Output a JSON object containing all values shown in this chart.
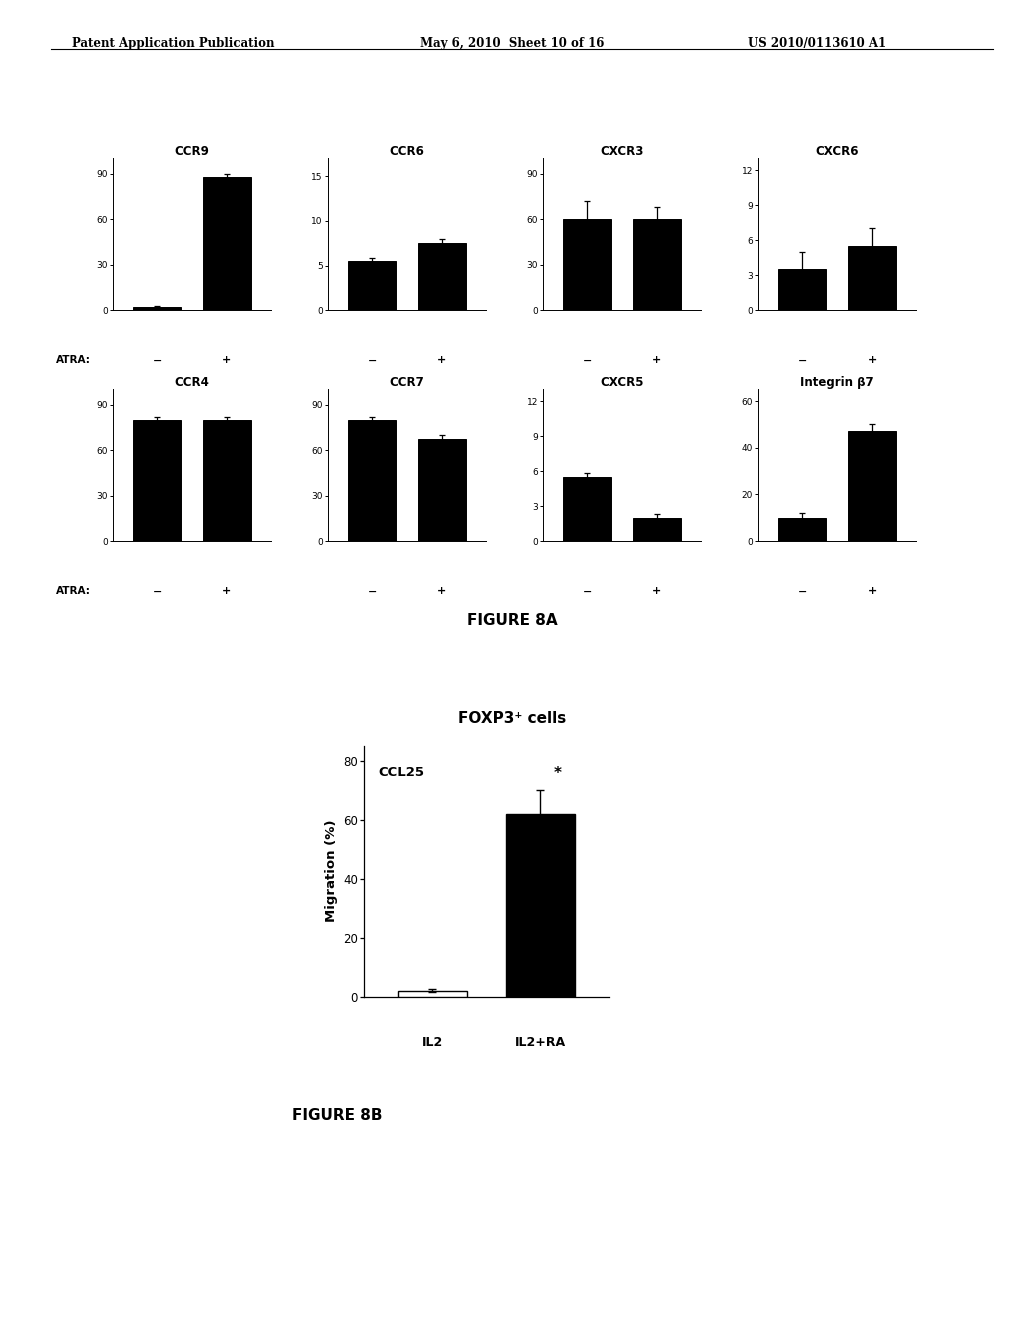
{
  "header_left": "Patent Application Publication",
  "header_mid": "May 6, 2010  Sheet 10 of 16",
  "header_right": "US 2010/0113610 A1",
  "figure8a_label": "FIGURE 8A",
  "figure8b_label": "FIGURE 8B",
  "row1": [
    {
      "title": "CCR9",
      "bars": [
        2,
        88
      ],
      "errors": [
        1,
        2
      ],
      "yticks": [
        0,
        30,
        60,
        90
      ],
      "ylim": [
        0,
        100
      ],
      "xtick_labels": [
        "−",
        "+"
      ]
    },
    {
      "title": "CCR6",
      "bars": [
        5.5,
        7.5
      ],
      "errors": [
        0.3,
        0.5
      ],
      "yticks": [
        0,
        5,
        10,
        15
      ],
      "ylim": [
        0,
        17
      ],
      "xtick_labels": [
        "−",
        "+"
      ]
    },
    {
      "title": "CXCR3",
      "bars": [
        60,
        60
      ],
      "errors": [
        12,
        8
      ],
      "yticks": [
        0,
        30,
        60,
        90
      ],
      "ylim": [
        0,
        100
      ],
      "xtick_labels": [
        "−",
        "+"
      ]
    },
    {
      "title": "CXCR6",
      "bars": [
        3.5,
        5.5
      ],
      "errors": [
        1.5,
        1.5
      ],
      "yticks": [
        0,
        3,
        6,
        9,
        12
      ],
      "ylim": [
        0,
        13
      ],
      "xtick_labels": [
        "−",
        "+"
      ]
    }
  ],
  "row2": [
    {
      "title": "CCR4",
      "bars": [
        80,
        80
      ],
      "errors": [
        2,
        2
      ],
      "yticks": [
        0,
        30,
        60,
        90
      ],
      "ylim": [
        0,
        100
      ],
      "xtick_labels": [
        "−",
        "+"
      ]
    },
    {
      "title": "CCR7",
      "bars": [
        80,
        67
      ],
      "errors": [
        2,
        3
      ],
      "yticks": [
        0,
        30,
        60,
        90
      ],
      "ylim": [
        0,
        100
      ],
      "xtick_labels": [
        "−",
        "+"
      ]
    },
    {
      "title": "CXCR5",
      "bars": [
        5.5,
        2
      ],
      "errors": [
        0.3,
        0.3
      ],
      "yticks": [
        0,
        3,
        6,
        9,
        12
      ],
      "ylim": [
        0,
        13
      ],
      "xtick_labels": [
        "−",
        "+"
      ]
    },
    {
      "title": "Integrin β7",
      "bars": [
        10,
        47
      ],
      "errors": [
        2,
        3
      ],
      "yticks": [
        0,
        20,
        40,
        60
      ],
      "ylim": [
        0,
        65
      ],
      "xtick_labels": [
        "−",
        "+"
      ]
    }
  ],
  "fig8b": {
    "title": "FOXP3⁺ cells",
    "bars": [
      2,
      62
    ],
    "errors": [
      0.5,
      8
    ],
    "yticks": [
      0,
      20,
      40,
      60,
      80
    ],
    "ylim": [
      0,
      85
    ],
    "ylabel": "Migration (%)",
    "xtick_labels": [
      "IL2",
      "IL2+RA"
    ],
    "annotation": "CCL25",
    "star": "*"
  },
  "atra_label": "ATRA:",
  "bar_color": "#000000",
  "bg_color": "#ffffff"
}
